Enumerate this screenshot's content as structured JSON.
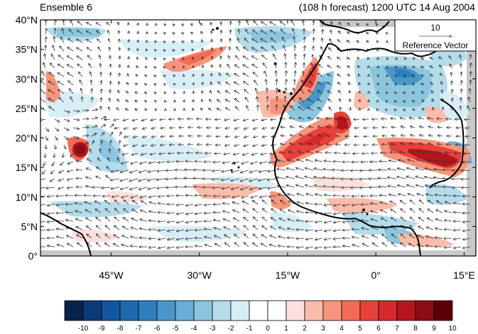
{
  "header": {
    "ensemble_label": "Ensemble 6",
    "forecast_label": "(108 h forecast) 1200 UTC 14 Aug 2004"
  },
  "map": {
    "lat_ticks": [
      "40°N",
      "35°N",
      "30°N",
      "25°N",
      "20°N",
      "15°N",
      "10°N",
      "5°N",
      "0°"
    ],
    "lon_ticks": [
      "45°W",
      "30°W",
      "15°W",
      "0°",
      "15°E"
    ],
    "lon_range": [
      -57,
      17
    ],
    "lat_range": [
      0,
      40
    ],
    "land_color": "#000000",
    "missing_color": "#c8c8c8"
  },
  "reference_vector": {
    "magnitude_label": "10",
    "caption": "Reference Vector"
  },
  "colorbar": {
    "labels": [
      "-10",
      "-9",
      "-8",
      "-7",
      "-6",
      "-5",
      "-4",
      "-3",
      "-2",
      "-1",
      "0",
      "1",
      "2",
      "3",
      "4",
      "5",
      "6",
      "7",
      "8",
      "9",
      "10"
    ],
    "colors": [
      "#08224a",
      "#0a3a78",
      "#14559f",
      "#1f6aad",
      "#2f7fbd",
      "#4a96c9",
      "#6aaed6",
      "#8cc6de",
      "#b4dcea",
      "#d8eef6",
      "#ffffff",
      "#ffffff",
      "#fde0dd",
      "#fbbcaa",
      "#f7957c",
      "#f26b52",
      "#e8413a",
      "#d42a2e",
      "#b5151d",
      "#8e0c14",
      "#5e0008"
    ]
  }
}
